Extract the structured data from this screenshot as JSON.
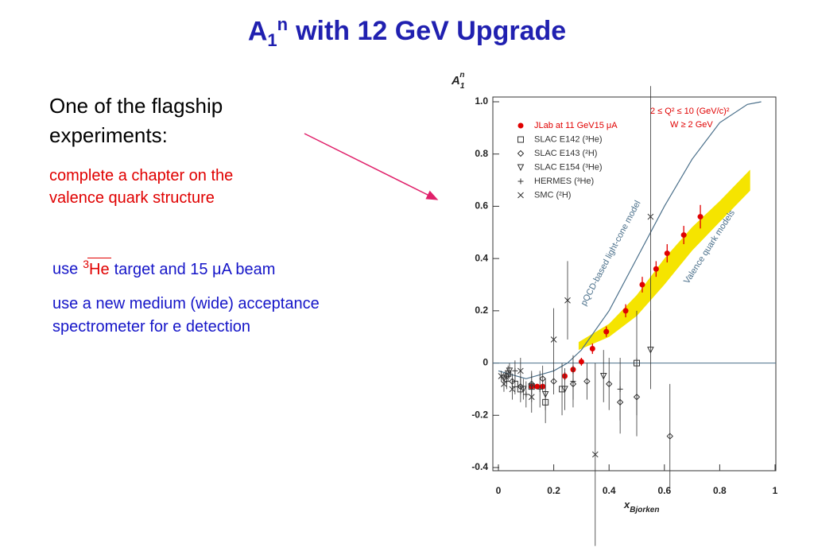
{
  "title": {
    "base": "A",
    "sub": "1",
    "sup": "n",
    "rest": "with 12 GeV Upgrade"
  },
  "intro": {
    "lines": [
      "One of the flagship",
      "experiments:"
    ]
  },
  "goal": {
    "lines": [
      "complete a chapter on the",
      "valence quark structure"
    ]
  },
  "setup": {
    "pre": "use",
    "mass": "3",
    "target": "He",
    "post": "target and 15 μA beam"
  },
  "detector": {
    "lines": [
      "use a new medium (wide) acceptance",
      "spectrometer for e detection"
    ]
  },
  "chart_data": {
    "type": "scatter",
    "ylabel": {
      "base": "A",
      "sub": "1",
      "sup": "n"
    },
    "xlabel": {
      "base": "x",
      "sub": "Bjorken"
    },
    "xlim": [
      0,
      1
    ],
    "ylim": [
      -0.4,
      1.0
    ],
    "xticks": [
      0,
      0.2,
      0.4,
      0.6,
      0.8,
      1
    ],
    "yticks": [
      -0.4,
      -0.2,
      0,
      0.2,
      0.4,
      0.6,
      0.8,
      {
        "value": 1,
        "label": "1.0"
      }
    ],
    "legend": "upper left",
    "annotations": [
      "2 ≤ Q² ≤ 10 (GeV/c)²",
      "W ≥ 2 GeV"
    ],
    "series": [
      {
        "name": "JLab at 11 GeV15 μA",
        "color": "#e00000",
        "marker": "circle",
        "x": [
          0.12,
          0.14,
          0.16,
          0.24,
          0.27,
          0.3,
          0.34,
          0.39,
          0.46,
          0.52,
          0.57,
          0.61,
          0.67,
          0.73
        ],
        "values": [
          -0.09,
          -0.09,
          -0.09,
          -0.05,
          -0.025,
          0.005,
          0.055,
          0.12,
          0.2,
          0.3,
          0.36,
          0.42,
          0.49,
          0.56
        ],
        "errors": [
          0.01,
          0.01,
          0.01,
          0.015,
          0.015,
          0.015,
          0.02,
          0.02,
          0.025,
          0.03,
          0.03,
          0.035,
          0.035,
          0.045
        ]
      },
      {
        "name": "SLAC E142 (³He)",
        "color": "#333333",
        "marker": "square",
        "x": [
          0.035,
          0.06,
          0.08,
          0.12,
          0.17,
          0.23,
          0.5
        ],
        "values": [
          -0.04,
          -0.08,
          -0.1,
          -0.09,
          -0.15,
          -0.1,
          0.0
        ],
        "errors": [
          0.03,
          0.04,
          0.05,
          0.06,
          0.08,
          0.1,
          0.2
        ]
      },
      {
        "name": "SLAC E143 (²H)",
        "color": "#333333",
        "marker": "diamond",
        "x": [
          0.03,
          0.05,
          0.08,
          0.12,
          0.16,
          0.2,
          0.27,
          0.32,
          0.4,
          0.44,
          0.5,
          0.62
        ],
        "values": [
          -0.05,
          -0.07,
          -0.09,
          -0.08,
          -0.06,
          -0.07,
          -0.08,
          -0.07,
          -0.08,
          -0.15,
          -0.13,
          -0.28
        ],
        "errors": [
          0.02,
          0.03,
          0.03,
          0.04,
          0.05,
          0.05,
          0.06,
          0.07,
          0.1,
          0.12,
          0.15,
          0.2
        ]
      },
      {
        "name": "SLAC E154 (³He)",
        "color": "#333333",
        "marker": "triangle-down",
        "x": [
          0.02,
          0.04,
          0.09,
          0.17,
          0.24,
          0.38,
          0.55
        ],
        "values": [
          -0.06,
          -0.03,
          -0.1,
          -0.12,
          -0.1,
          -0.05,
          0.05
        ],
        "errors": [
          0.02,
          0.03,
          0.04,
          0.06,
          0.08,
          0.1,
          0.15
        ]
      },
      {
        "name": "HERMES (³He)",
        "color": "#333333",
        "marker": "plus",
        "x": [
          0.03,
          0.06,
          0.1,
          0.15,
          0.27,
          0.44
        ],
        "values": [
          -0.07,
          -0.03,
          -0.12,
          -0.1,
          -0.07,
          -0.1
        ],
        "errors": [
          0.03,
          0.04,
          0.05,
          0.07,
          0.1,
          0.12
        ]
      },
      {
        "name": "SMC (²H)",
        "color": "#333333",
        "marker": "x",
        "x": [
          0.01,
          0.02,
          0.05,
          0.08,
          0.12,
          0.2,
          0.25,
          0.35,
          0.55
        ],
        "values": [
          -0.05,
          -0.08,
          -0.1,
          -0.03,
          -0.13,
          0.09,
          0.24,
          -0.35,
          0.56
        ],
        "errors": [
          0.02,
          0.03,
          0.04,
          0.05,
          0.06,
          0.12,
          0.15,
          0.35,
          0.5
        ]
      }
    ],
    "curves": [
      {
        "name": "pQCD-based light-cone model",
        "color": "#4a6f8a",
        "x": [
          0,
          0.1,
          0.2,
          0.25,
          0.3,
          0.4,
          0.5,
          0.6,
          0.7,
          0.8,
          0.9,
          0.95
        ],
        "values": [
          -0.03,
          -0.06,
          -0.03,
          0.0,
          0.05,
          0.2,
          0.4,
          0.6,
          0.78,
          0.92,
          0.99,
          1.0
        ]
      }
    ],
    "bands": [
      {
        "name": "Valence quark models",
        "color": "#f5e400",
        "x": [
          0.29,
          0.4,
          0.5,
          0.6,
          0.7,
          0.8,
          0.91
        ],
        "upper": [
          0.08,
          0.15,
          0.26,
          0.4,
          0.52,
          0.62,
          0.74
        ],
        "lower": [
          0.05,
          0.1,
          0.18,
          0.3,
          0.43,
          0.54,
          0.66
        ]
      }
    ]
  }
}
